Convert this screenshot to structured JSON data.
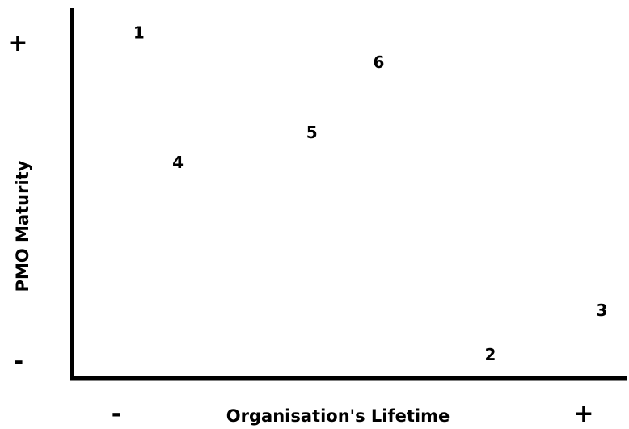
{
  "chart_data": {
    "type": "scatter",
    "title": "",
    "xlabel": "Organisation's Lifetime",
    "ylabel": "PMO Maturity",
    "x_low_label": "-",
    "x_high_label": "+",
    "y_low_label": "-",
    "y_high_label": "+",
    "xlim": [
      0,
      10
    ],
    "ylim": [
      0,
      10
    ],
    "grid": false,
    "points": [
      {
        "label": "1",
        "x": 1.2,
        "y": 9.3
      },
      {
        "label": "2",
        "x": 7.5,
        "y": 0.6
      },
      {
        "label": "3",
        "x": 9.5,
        "y": 1.8
      },
      {
        "label": "4",
        "x": 1.9,
        "y": 5.8
      },
      {
        "label": "5",
        "x": 4.3,
        "y": 6.6
      },
      {
        "label": "6",
        "x": 5.5,
        "y": 8.5
      }
    ]
  }
}
